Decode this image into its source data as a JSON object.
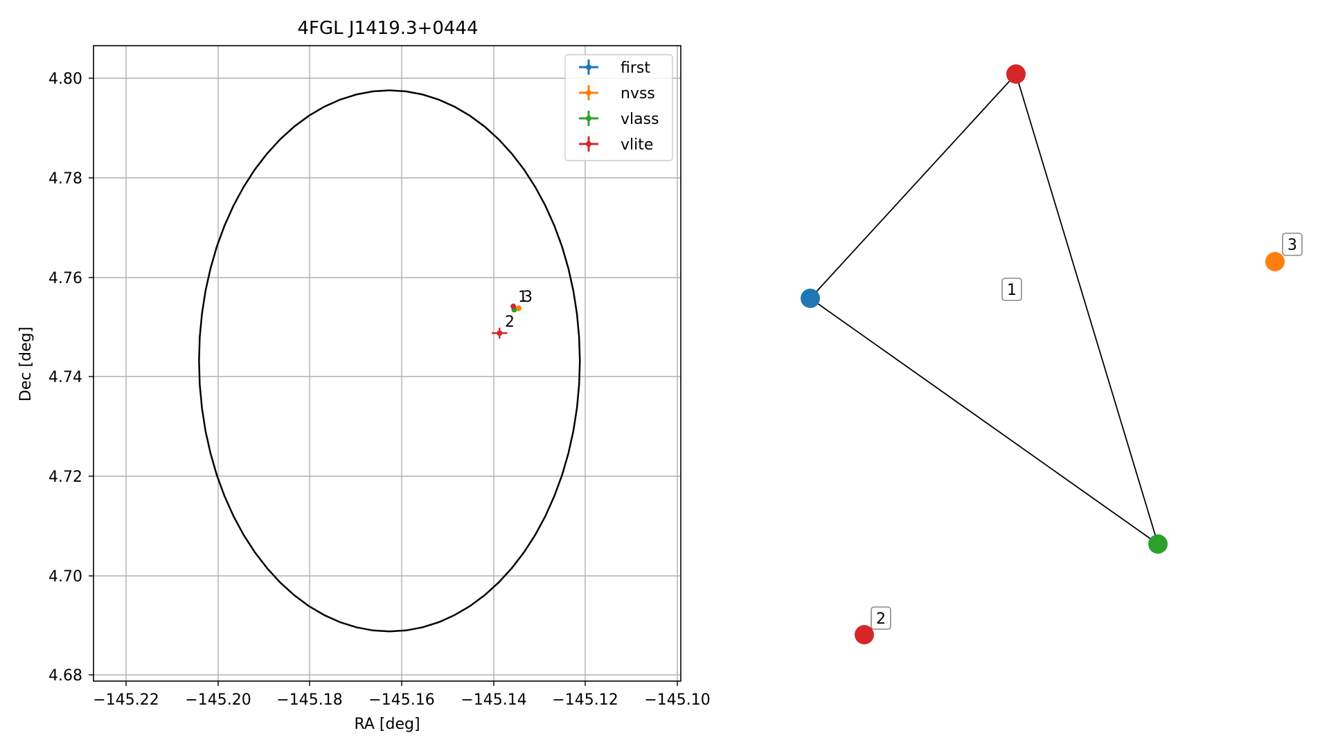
{
  "chart_data": [
    {
      "type": "scatter",
      "title": "4FGL J1419.3+0444",
      "xlabel": "RA [deg]",
      "ylabel": "Dec [deg]",
      "xlim": [
        -145.227,
        -145.099
      ],
      "ylim": [
        4.6787,
        4.8067
      ],
      "xticks": [
        -145.22,
        -145.2,
        -145.18,
        -145.16,
        -145.14,
        -145.12,
        -145.1
      ],
      "xtick_labels": [
        "−145.22",
        "−145.20",
        "−145.18",
        "−145.16",
        "−145.14",
        "−145.12",
        "−145.10"
      ],
      "yticks": [
        4.68,
        4.7,
        4.72,
        4.74,
        4.76,
        4.78,
        4.8
      ],
      "ytick_labels": [
        "4.68",
        "4.70",
        "4.72",
        "4.74",
        "4.76",
        "4.78",
        "4.80"
      ],
      "grid": true,
      "legend_position": "upper-right",
      "ellipse": {
        "center_ra": -145.1625,
        "center_dec": 4.7432,
        "radius_ra": 0.0415,
        "radius_dec": 0.0545
      },
      "series": [
        {
          "name": "first",
          "color": "#1f77b4",
          "points": [
            {
              "ra": -145.1353,
              "dec": 4.7538,
              "ra_err": 0.0003,
              "dec_err": 0.0003
            }
          ]
        },
        {
          "name": "nvss",
          "color": "#ff7f0e",
          "points": [
            {
              "ra": -145.1343,
              "dec": 4.7538,
              "ra_err": 0.0006,
              "dec_err": 0.0006
            }
          ]
        },
        {
          "name": "vlass",
          "color": "#2ca02c",
          "points": [
            {
              "ra": -145.1353,
              "dec": 4.7535,
              "ra_err": 0.0002,
              "dec_err": 0.0002
            }
          ]
        },
        {
          "name": "vlite",
          "color": "#d62728",
          "points": [
            {
              "ra": -145.1355,
              "dec": 4.7542,
              "ra_err": 0.0004,
              "dec_err": 0.0004
            },
            {
              "ra": -145.1385,
              "dec": 4.7488,
              "ra_err": 0.0017,
              "dec_err": 0.0011
            }
          ]
        }
      ],
      "annotations": [
        {
          "text": "1",
          "ra": -145.1335,
          "dec": 4.7546
        },
        {
          "text": "3",
          "ra": -145.1326,
          "dec": 4.7546
        },
        {
          "text": "2",
          "ra": -145.139,
          "dec": 4.7495
        }
      ]
    },
    {
      "type": "network",
      "nodes": [
        {
          "id": "first",
          "color": "#1f77b4"
        },
        {
          "id": "vlite-1",
          "color": "#d62728"
        },
        {
          "id": "vlass",
          "color": "#2ca02c"
        },
        {
          "id": "nvss",
          "color": "#ff7f0e",
          "label": "3"
        },
        {
          "id": "vlite-2",
          "color": "#d62728",
          "label": "2"
        }
      ],
      "edges": [
        [
          "first",
          "vlite-1"
        ],
        [
          "vlite-1",
          "vlass"
        ],
        [
          "vlass",
          "first"
        ]
      ],
      "group_labels": [
        "1"
      ]
    }
  ]
}
